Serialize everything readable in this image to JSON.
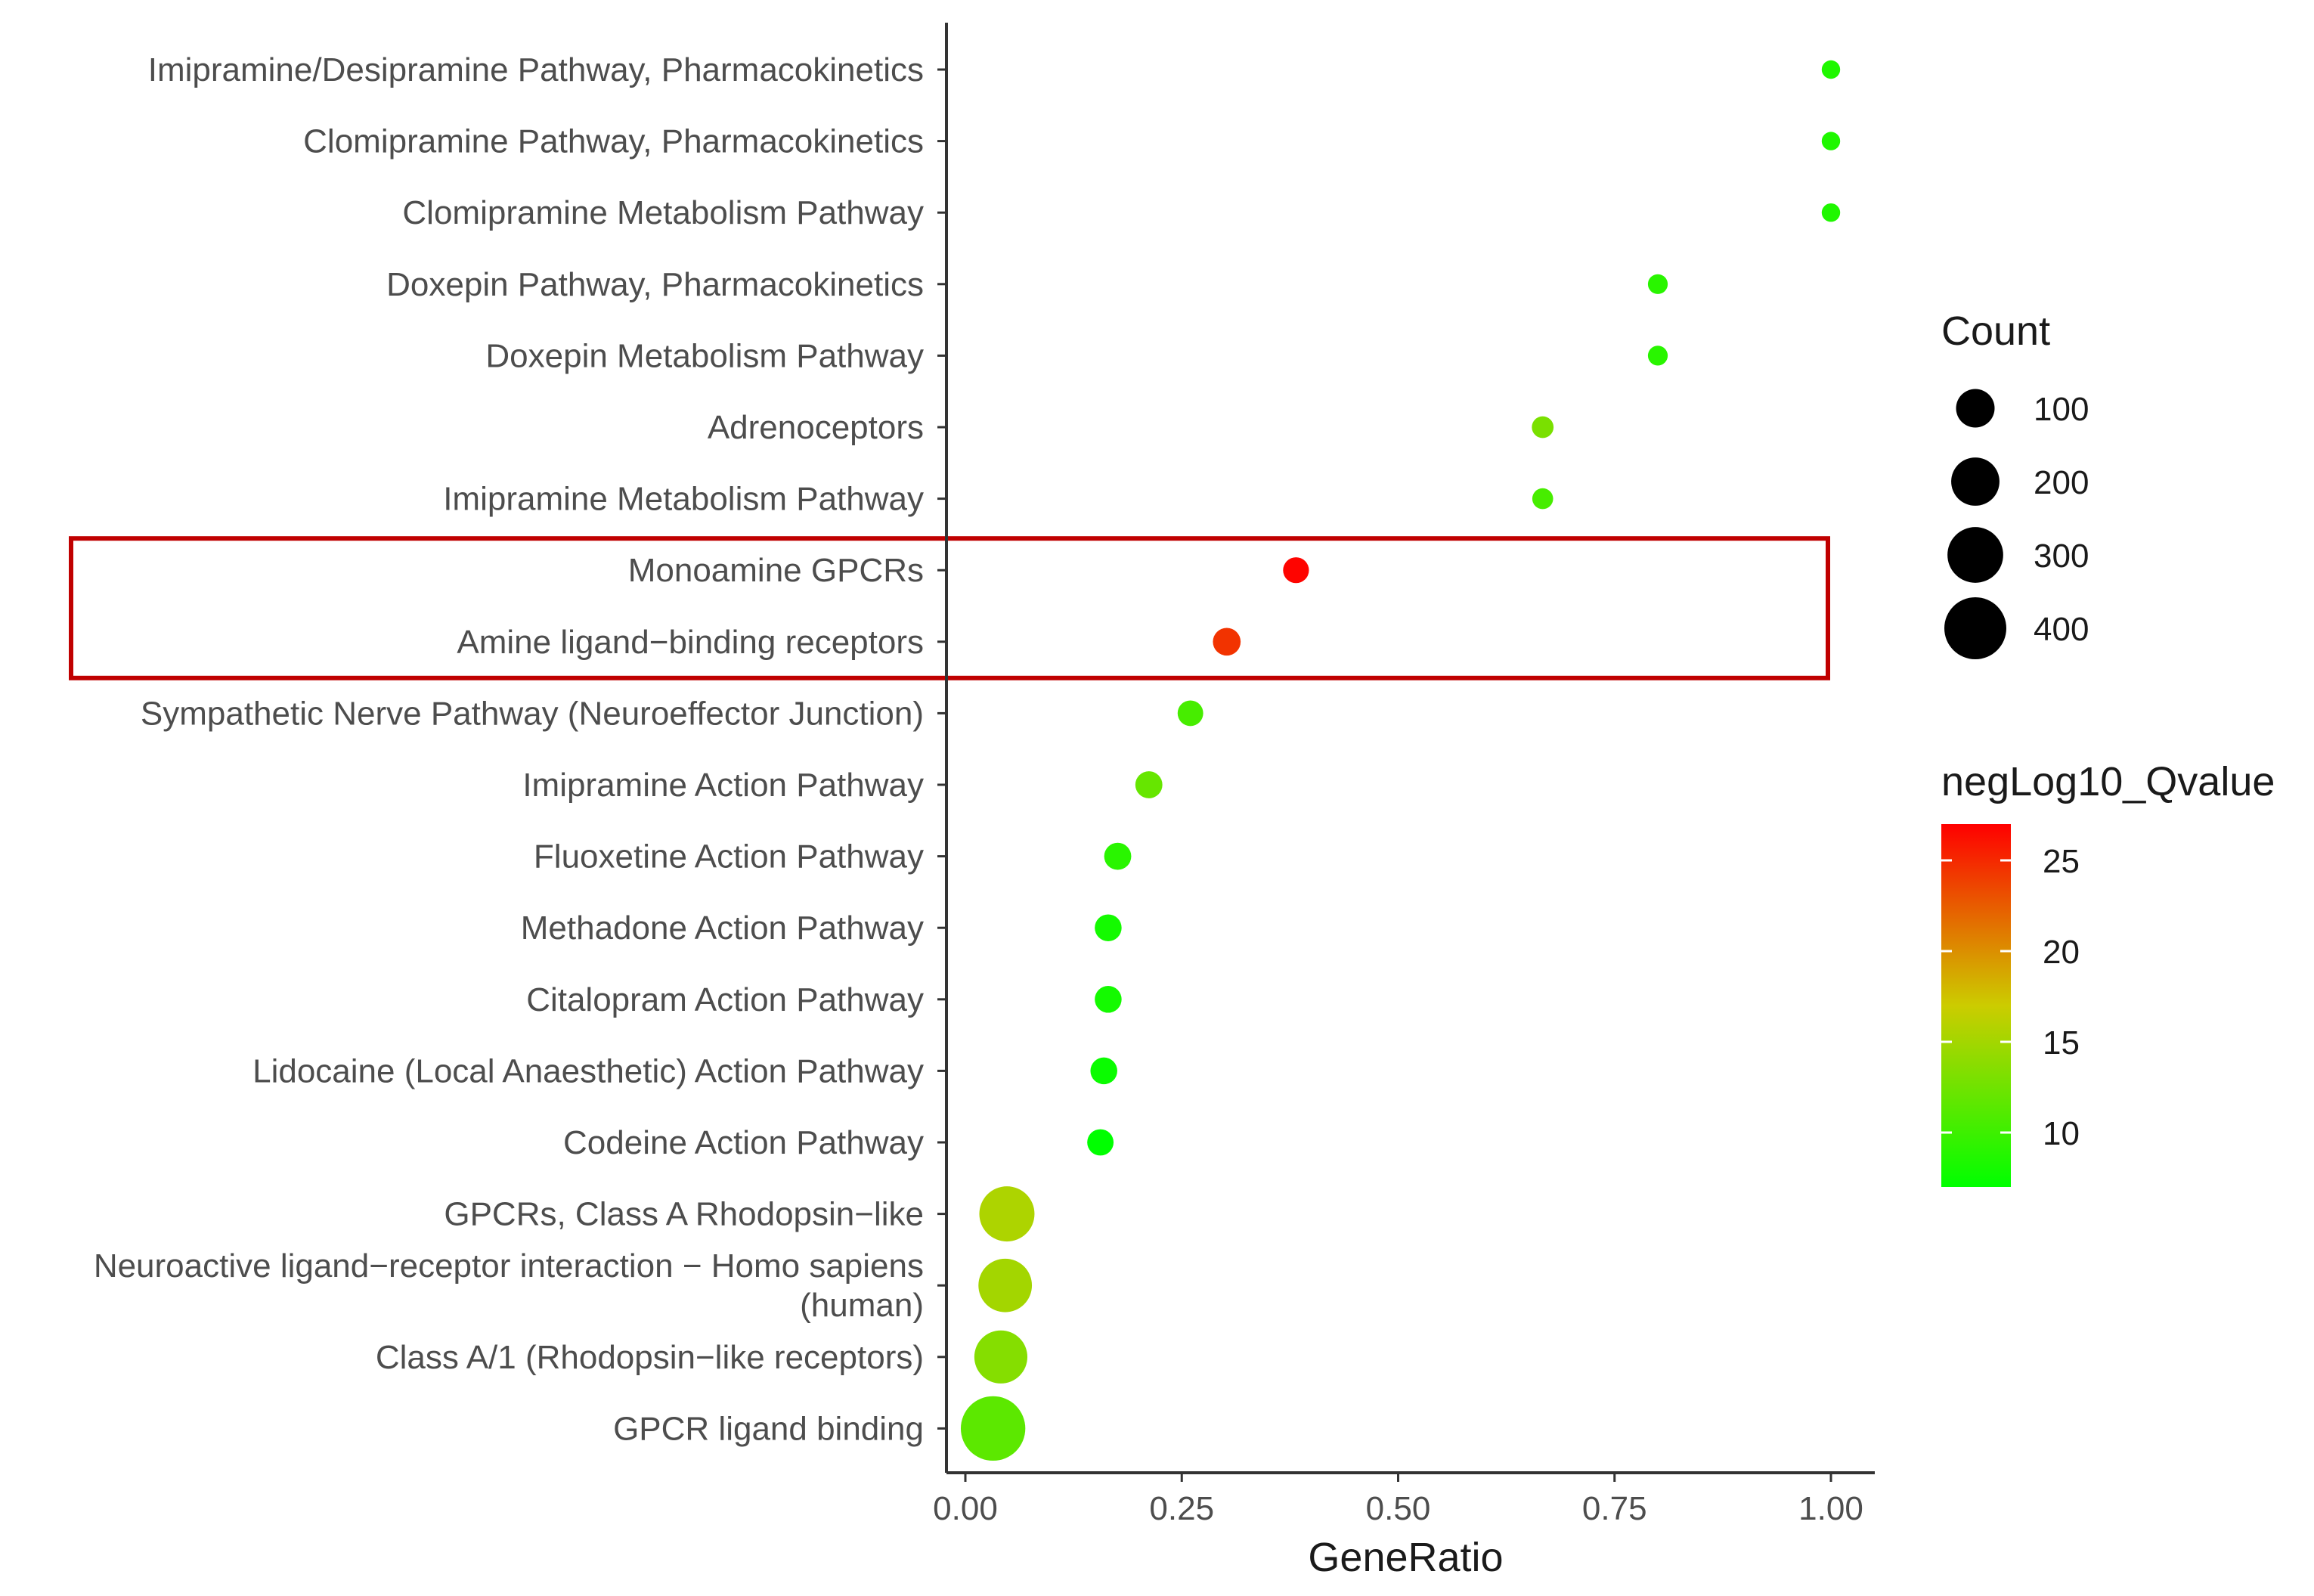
{
  "chart_data": {
    "type": "scatter",
    "xlabel": "GeneRatio",
    "ylabel": "",
    "xlim": [
      -0.02,
      1.05
    ],
    "x_ticks": [
      0.0,
      0.25,
      0.5,
      0.75,
      1.0
    ],
    "x_tick_labels": [
      "0.00",
      "0.25",
      "0.50",
      "0.75",
      "1.00"
    ],
    "categories": [
      "Imipramine/Desipramine Pathway, Pharmacokinetics",
      "Clomipramine Pathway, Pharmacokinetics",
      "Clomipramine Metabolism Pathway",
      "Doxepin Pathway, Pharmacokinetics",
      "Doxepin Metabolism Pathway",
      "Adrenoceptors",
      "Imipramine Metabolism Pathway",
      "Monoamine GPCRs",
      "Amine ligand-binding receptors",
      "Sympathetic Nerve Pathway (Neuroeffector Junction)",
      "Imipramine Action Pathway",
      "Fluoxetine Action Pathway",
      "Methadone Action Pathway",
      "Citalopram Action Pathway",
      "Lidocaine (Local Anaesthetic) Action Pathway",
      "Codeine Action Pathway",
      "GPCRs, Class A Rhodopsin-like",
      "Neuroactive ligand-receptor interaction - Homo sapiens (human)",
      "Class A/1 (Rhodopsin-like receptors)",
      "GPCR ligand binding"
    ],
    "category_label_lines": [
      [
        "Imipramine/Desipramine Pathway, Pharmacokinetics"
      ],
      [
        "Clomipramine Pathway, Pharmacokinetics"
      ],
      [
        "Clomipramine Metabolism Pathway"
      ],
      [
        "Doxepin Pathway, Pharmacokinetics"
      ],
      [
        "Doxepin Metabolism Pathway"
      ],
      [
        "Adrenoceptors"
      ],
      [
        "Imipramine Metabolism Pathway"
      ],
      [
        "Monoamine GPCRs"
      ],
      [
        "Amine ligand−binding receptors"
      ],
      [
        "Sympathetic Nerve Pathway (Neuroeffector Junction)"
      ],
      [
        "Imipramine Action Pathway"
      ],
      [
        "Fluoxetine Action Pathway"
      ],
      [
        "Methadone Action Pathway"
      ],
      [
        "Citalopram Action Pathway"
      ],
      [
        "Lidocaine (Local Anaesthetic) Action Pathway"
      ],
      [
        "Codeine Action Pathway"
      ],
      [
        "GPCRs, Class A Rhodopsin−like"
      ],
      [
        "Neuroactive ligand−receptor interaction − Homo sapiens",
        "(human)"
      ],
      [
        "Class A/1 (Rhodopsin−like receptors)"
      ],
      [
        "GPCR ligand binding"
      ]
    ],
    "gene_ratio": [
      1.0,
      1.0,
      1.0,
      0.8,
      0.8,
      0.667,
      0.667,
      0.382,
      0.302,
      0.26,
      0.212,
      0.176,
      0.165,
      0.165,
      0.16,
      0.156,
      0.048,
      0.046,
      0.041,
      0.032
    ],
    "count": [
      2,
      2,
      2,
      4,
      4,
      8,
      6,
      21,
      29,
      20,
      26,
      26,
      25,
      25,
      25,
      23,
      292,
      268,
      262,
      444
    ],
    "negLog10_Qvalue": [
      8.5,
      8.5,
      8.5,
      9.0,
      9.0,
      13.0,
      10.5,
      26.8,
      24.5,
      10.5,
      12.0,
      9.0,
      8.0,
      8.0,
      7.5,
      7.0,
      15.5,
      15.0,
      13.5,
      11.5
    ],
    "highlight": {
      "categories": [
        "Monoamine GPCRs",
        "Amine ligand-binding receptors"
      ],
      "color": "#c00000"
    },
    "size_legend": {
      "title": "Count",
      "values": [
        100,
        200,
        300,
        400
      ],
      "labels": [
        "100",
        "200",
        "300",
        "400"
      ]
    },
    "color_legend": {
      "title": "negLog10_Qvalue",
      "min": 7,
      "max": 27,
      "ticks": [
        10,
        15,
        20,
        25
      ],
      "tick_labels": [
        "10",
        "15",
        "20",
        "25"
      ],
      "colors": [
        "#00ff00",
        "#cccc00",
        "#ff0000"
      ]
    }
  }
}
